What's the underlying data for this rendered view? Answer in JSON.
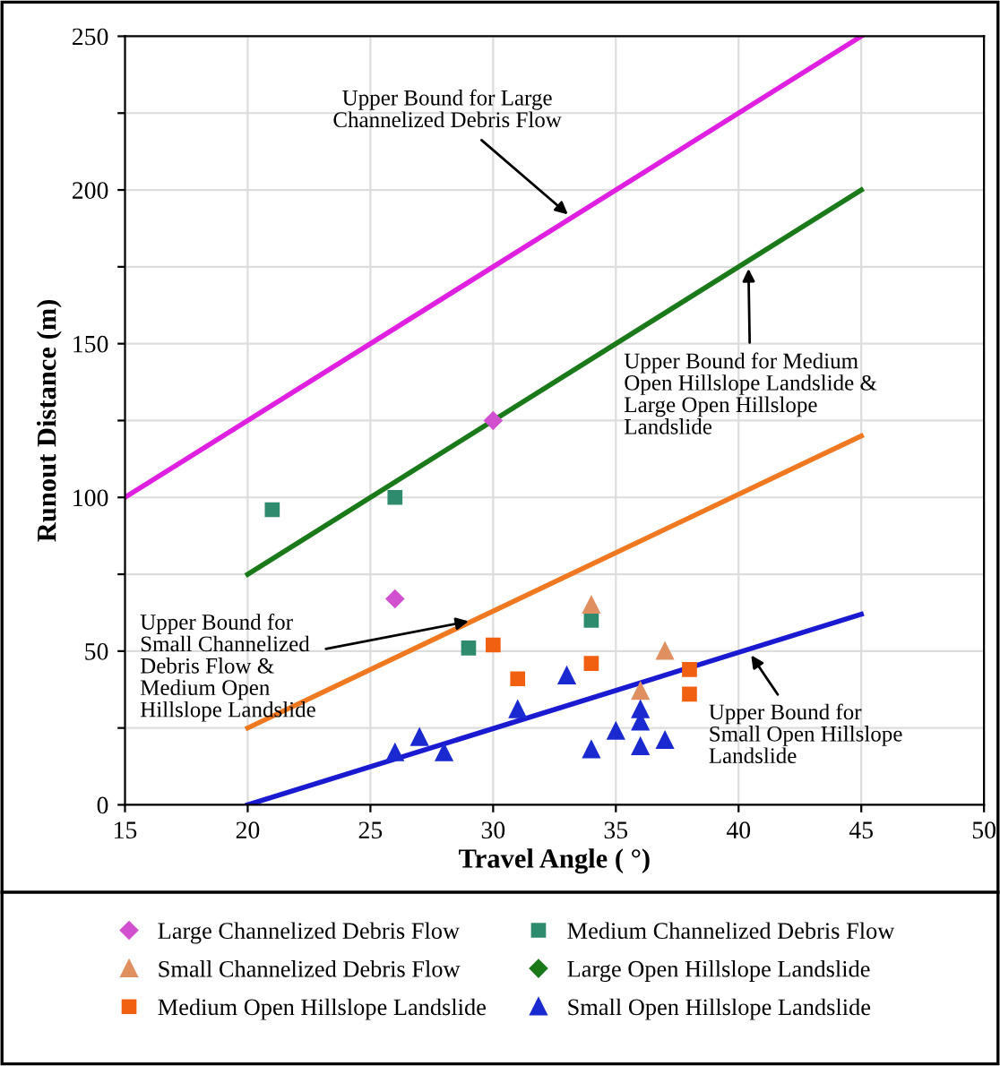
{
  "chart_data": {
    "type": "scatter",
    "xlabel": "Travel Angle ( °)",
    "ylabel": "Runout Distance (m)",
    "xlim": [
      15,
      50
    ],
    "xticks": [
      15,
      20,
      25,
      30,
      35,
      40,
      45,
      50
    ],
    "ylim": [
      0,
      250
    ],
    "yticks": [
      0,
      {
        "value": 25,
        "label": null
      },
      50,
      {
        "value": 75,
        "label": null
      },
      100,
      {
        "value": 125,
        "label": null
      },
      150,
      {
        "value": 175,
        "label": null
      },
      200,
      {
        "value": 225,
        "label": null
      },
      250
    ],
    "grid": true,
    "legend": "bottom",
    "series": [
      {
        "type": "line",
        "color": "#e020e0",
        "x": [
          15,
          45
        ],
        "values": [
          100,
          250
        ],
        "marker": "none"
      },
      {
        "type": "line",
        "color": "#1a7a1a",
        "x": [
          20,
          45
        ],
        "values": [
          75,
          200
        ],
        "marker": "none"
      },
      {
        "type": "line",
        "color": "#f07820",
        "x": [
          20,
          45
        ],
        "values": [
          25,
          120
        ],
        "marker": "none"
      },
      {
        "type": "line",
        "color": "#1a1ad0",
        "x": [
          20,
          45
        ],
        "values": [
          0,
          62
        ],
        "marker": "none"
      },
      {
        "name": "Large Channelized Debris Flow",
        "color": "#d050d0",
        "marker": "diamond",
        "x": [
          26,
          30
        ],
        "values": [
          67,
          125
        ]
      },
      {
        "name": "Medium Channelized Debris Flow",
        "color": "#2e8b6e",
        "marker": "square",
        "x": [
          21,
          26,
          29,
          34
        ],
        "values": [
          96,
          100,
          51,
          60
        ]
      },
      {
        "name": "Small Channelized Debris Flow",
        "color": "#e09060",
        "marker": "triangle",
        "x": [
          34,
          37,
          36
        ],
        "values": [
          65,
          50,
          37
        ]
      },
      {
        "name": "Large Open Hillslope Landslide",
        "color": "#1a7a1a",
        "marker": "diamond"
      },
      {
        "name": "Medium Open Hillslope Landslide",
        "color": "#f06010",
        "marker": "square",
        "x": [
          30,
          31,
          34,
          38,
          38
        ],
        "values": [
          52,
          41,
          46,
          44,
          36
        ]
      },
      {
        "name": "Small Open Hillslope Landslide",
        "color": "#1a2ad0",
        "marker": "triangle",
        "x": [
          26,
          27,
          28,
          31,
          33,
          34,
          35,
          36,
          36,
          36,
          37
        ],
        "values": [
          17,
          22,
          17,
          31,
          42,
          18,
          24,
          31,
          27,
          19,
          21
        ]
      }
    ],
    "annotations": [
      {
        "text": "Upper Bound for Large\nChannelized Debris Flow",
        "x": 33.2,
        "y": 191
      },
      {
        "text": "Upper Bound for Medium\nOpen Hillslope Landslide &\nLarge Open Hillslope\nLandslide",
        "x": 40.4,
        "y": 176
      },
      {
        "text": "Upper Bound for\nSmall Channelized\nDebris Flow &\nMedium Open\nHillslope Landslide",
        "x": 29.2,
        "y": 60
      },
      {
        "text": "Upper Bound for\nSmall Open Hillslope\nLandslide",
        "x": 40.4,
        "y": 50
      }
    ]
  }
}
